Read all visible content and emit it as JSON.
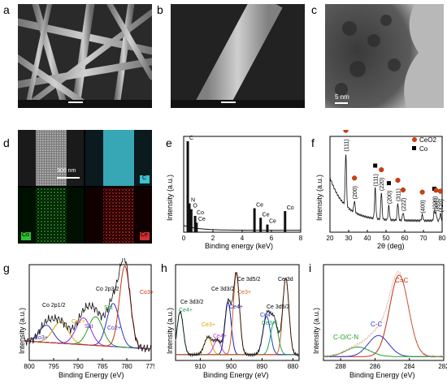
{
  "panels": {
    "a": "a",
    "b": "b",
    "c": "c",
    "d": "d",
    "e": "e",
    "f": "f",
    "g": "g",
    "h": "h",
    "i": "i"
  },
  "micrographs": {
    "c_scale": "5 nm",
    "d_scale": "300 nm",
    "d_labels": [
      "C",
      "Co",
      "Ce"
    ]
  },
  "chart_data": [
    {
      "panel": "e",
      "type": "line",
      "xlabel": "Binding energy (keV)",
      "ylabel": "Intensity (a.u.)",
      "xlim": [
        0,
        8
      ],
      "xticks": [
        0,
        2,
        4,
        6,
        8
      ],
      "peaks": [
        {
          "label": "C",
          "x": 0.28,
          "y": 0.95
        },
        {
          "label": "N",
          "x": 0.39,
          "y": 0.3
        },
        {
          "label": "O",
          "x": 0.52,
          "y": 0.24
        },
        {
          "label": "Co",
          "x": 0.78,
          "y": 0.17
        },
        {
          "label": "Ce",
          "x": 0.88,
          "y": 0.1
        },
        {
          "label": "Ce",
          "x": 4.84,
          "y": 0.25
        },
        {
          "label": "Ce",
          "x": 5.26,
          "y": 0.15
        },
        {
          "label": "Ce",
          "x": 5.72,
          "y": 0.08
        },
        {
          "label": "Co",
          "x": 6.93,
          "y": 0.22
        }
      ]
    },
    {
      "panel": "f",
      "type": "line",
      "xlabel": "2θ (deg)",
      "ylabel": "Intensity (a.u.)",
      "xlim": [
        20,
        80
      ],
      "xticks": [
        20,
        30,
        40,
        50,
        60,
        70,
        80
      ],
      "legend": [
        "CeO2",
        "Co"
      ],
      "peaks": [
        {
          "label": "(111)",
          "x": 28.5,
          "phase": "CeO2"
        },
        {
          "label": "(200)",
          "x": 33.1,
          "phase": "CeO2"
        },
        {
          "label": "(111)",
          "x": 44.2,
          "phase": "Co"
        },
        {
          "label": "(220)",
          "x": 47.5,
          "phase": "CeO2"
        },
        {
          "label": "(200)",
          "x": 51.5,
          "phase": "Co"
        },
        {
          "label": "(311)",
          "x": 56.3,
          "phase": "CeO2"
        },
        {
          "label": "(222)",
          "x": 59.1,
          "phase": "CeO2"
        },
        {
          "label": "(400)",
          "x": 69.4,
          "phase": "CeO2"
        },
        {
          "label": "(220)",
          "x": 75.8,
          "phase": "Co"
        },
        {
          "label": "(331)",
          "x": 76.7,
          "phase": "CeO2"
        },
        {
          "label": "(420)",
          "x": 79.1,
          "phase": "CeO2"
        }
      ]
    },
    {
      "panel": "g",
      "type": "line",
      "xlabel": "Binding Energy (eV)",
      "ylabel": "Intensity (a.u.)",
      "xlim": [
        800,
        775
      ],
      "xticks": [
        800,
        795,
        790,
        785,
        780,
        775
      ],
      "annotations": [
        "Co 2p1/2",
        "Co 2p3/2",
        "Co3+",
        "Co2+",
        "Sat",
        "Sat",
        "Co2+",
        "Co3+"
      ],
      "components": [
        {
          "name": "Co3+",
          "center": 796.5,
          "color": "#3030c8"
        },
        {
          "name": "Co2+",
          "center": 793.6,
          "color": "#e0a000"
        },
        {
          "name": "Sat",
          "center": 788.9,
          "color": "#8a2be2"
        },
        {
          "name": "Sat",
          "center": 786.4,
          "color": "#20a020"
        },
        {
          "name": "Co2+",
          "center": 782.8,
          "color": "#3030c8"
        },
        {
          "name": "Co3+",
          "center": 780.4,
          "color": "#d03010"
        }
      ]
    },
    {
      "panel": "h",
      "type": "line",
      "xlabel": "Binding Energy (eV)",
      "ylabel": "Intensity (a.u.)",
      "xlim": [
        918,
        878
      ],
      "xticks": [
        910,
        900,
        890,
        880
      ],
      "annotations": [
        "Ce 3d3/2",
        "Ce 3d3/2",
        "Ce 3d5/2",
        "Ce 3d",
        "Ce 3d5/2",
        "Ce 3d5/2",
        "Ce4+",
        "Ce3+",
        "Ce4+",
        "Ce4+",
        "Ce3+",
        "Ce4+",
        "Ce3+"
      ],
      "components": [
        {
          "center": 916.5,
          "color": "#20a060"
        },
        {
          "center": 907.5,
          "color": "#e0a000"
        },
        {
          "center": 904.5,
          "color": "#c040c0"
        },
        {
          "center": 901.0,
          "color": "#2020c0"
        },
        {
          "center": 898.3,
          "color": "#d06020"
        },
        {
          "center": 888.5,
          "color": "#2040c0"
        },
        {
          "center": 886.0,
          "color": "#20a060"
        },
        {
          "center": 882.3,
          "color": "#d06020"
        }
      ]
    },
    {
      "panel": "i",
      "type": "line",
      "xlabel": "Binding Energy (eV)",
      "ylabel": "Intensity (a.u.)",
      "xlim": [
        289,
        282
      ],
      "xticks": [
        288,
        286,
        284,
        282
      ],
      "components": [
        {
          "name": "C=C",
          "center": 284.6,
          "color": "#c03010"
        },
        {
          "name": "C-C",
          "center": 285.8,
          "color": "#3030c8"
        },
        {
          "name": "C-O/C-N",
          "center": 287.0,
          "color": "#20a020"
        }
      ]
    }
  ]
}
